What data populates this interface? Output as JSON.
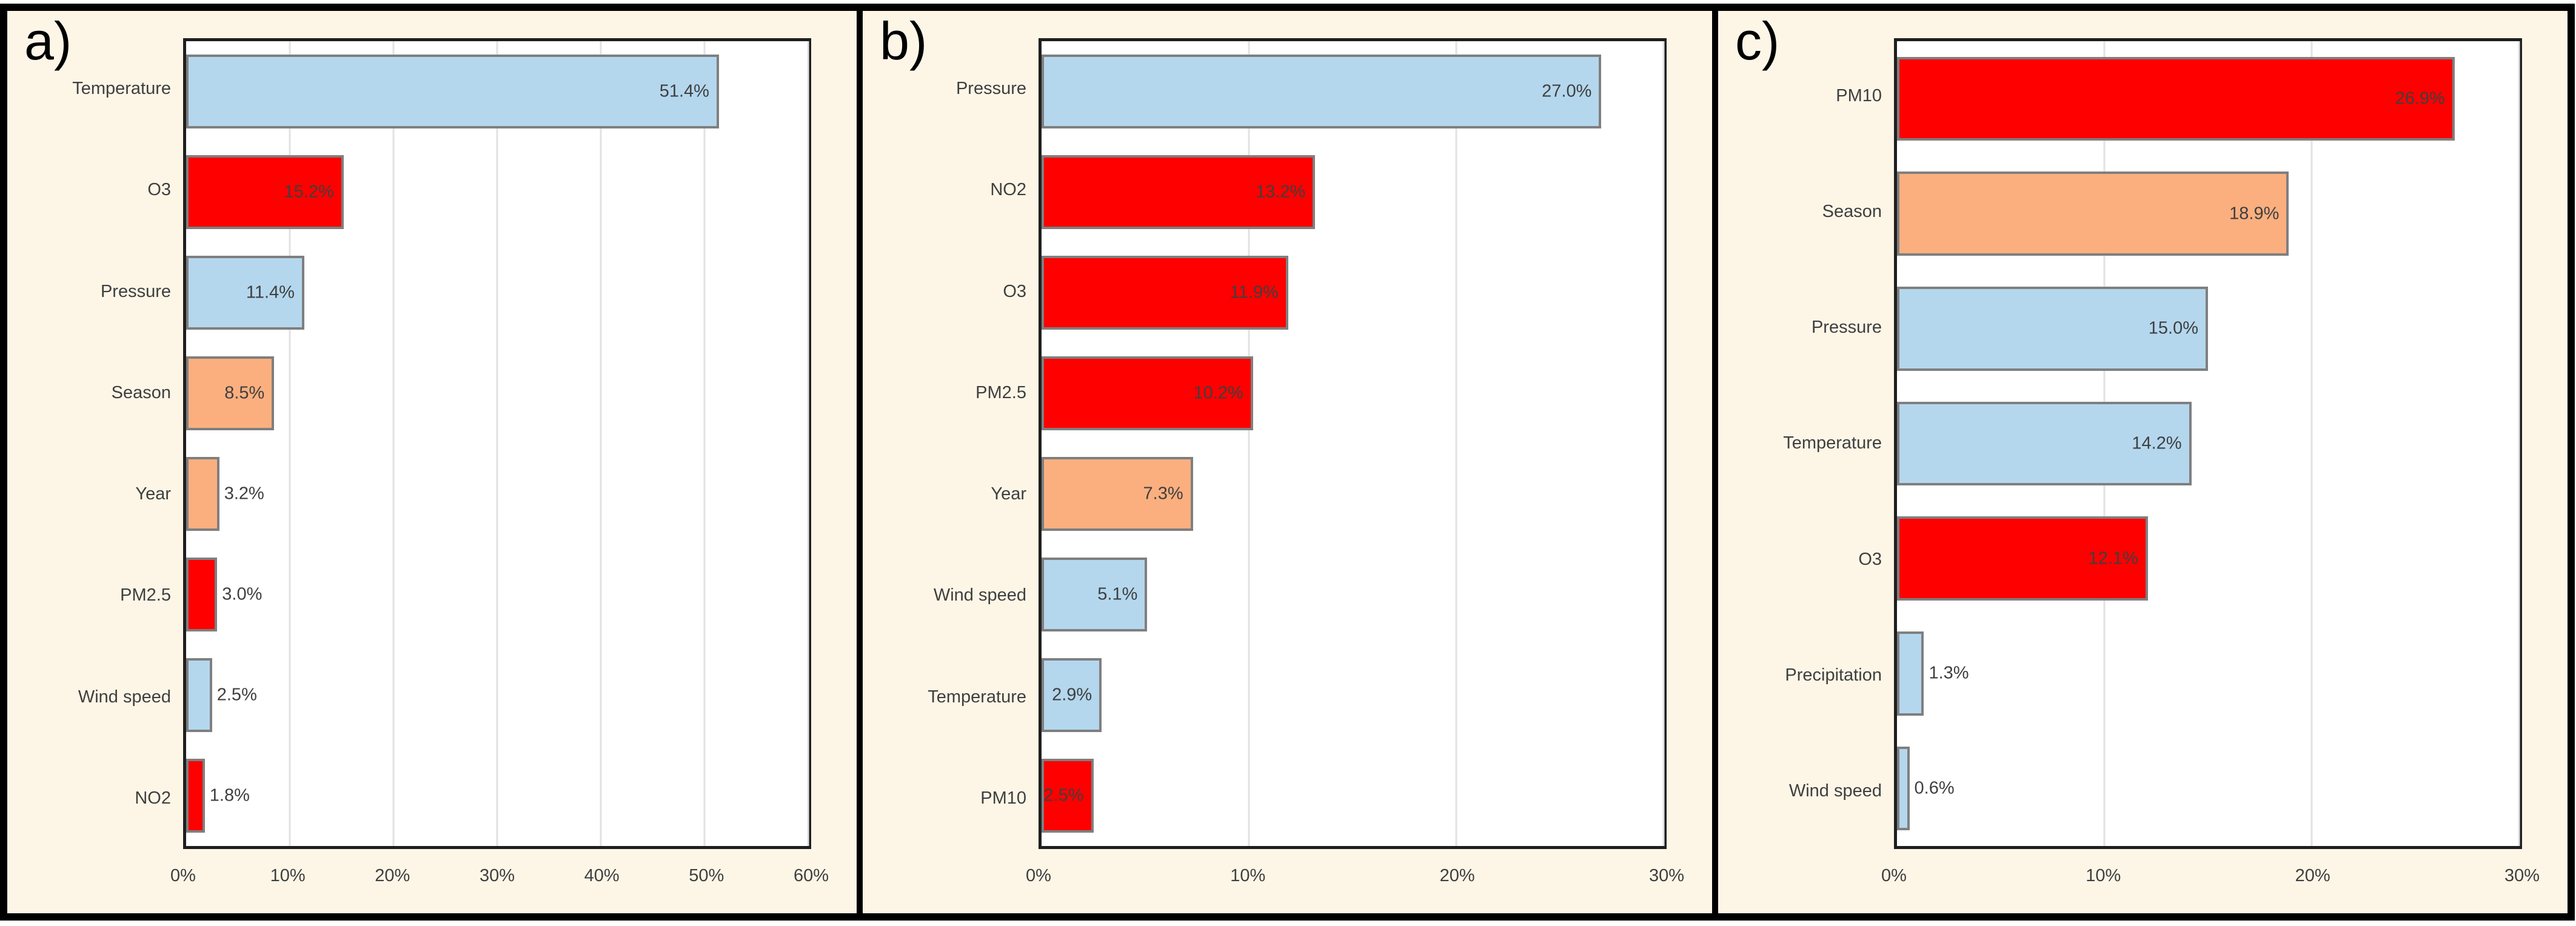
{
  "styles": {
    "background": "#FDF6E7",
    "frame_border": "#000000",
    "plot_border": "#1F1F1F",
    "gridline": "#E2E2E2",
    "text": "#3F3F3F",
    "bar_border": "#7F7F7F",
    "bar_blue": "#B4D7EE",
    "bar_red": "#FE0000",
    "bar_orange": "#FBAF7F"
  },
  "chart_data": [
    {
      "type": "bar",
      "orientation": "horizontal",
      "panel_label": "a)",
      "categories": [
        "Temperature",
        "O3",
        "Pressure",
        "Season",
        "Year",
        "PM2.5",
        "Wind speed",
        "NO2"
      ],
      "values": [
        51.4,
        15.2,
        11.4,
        8.5,
        3.2,
        3.0,
        2.5,
        1.8
      ],
      "value_labels": [
        "51.4%",
        "15.2%",
        "11.4%",
        "8.5%",
        "3.2%",
        "3.0%",
        "2.5%",
        "1.8%"
      ],
      "bar_colors": [
        "blue",
        "red",
        "blue",
        "orange",
        "orange",
        "red",
        "blue",
        "red"
      ],
      "label_placement": [
        "inside",
        "inside",
        "inside",
        "inside",
        "outside",
        "outside",
        "outside",
        "outside"
      ],
      "xlim": [
        0,
        60
      ],
      "xticks": [
        "0%",
        "10%",
        "20%",
        "30%",
        "40%",
        "50%",
        "60%"
      ],
      "grid": true,
      "legend": null,
      "title": "",
      "xlabel": "",
      "ylabel": ""
    },
    {
      "type": "bar",
      "orientation": "horizontal",
      "panel_label": "b)",
      "categories": [
        "Pressure",
        "NO2",
        "O3",
        "PM2.5",
        "Year",
        "Wind speed",
        "Temperature",
        "PM10"
      ],
      "values": [
        27.0,
        13.2,
        11.9,
        10.2,
        7.3,
        5.1,
        2.9,
        2.5
      ],
      "value_labels": [
        "27.0%",
        "13.2%",
        "11.9%",
        "10.2%",
        "7.3%",
        "5.1%",
        "2.9%",
        "2.5%"
      ],
      "bar_colors": [
        "blue",
        "red",
        "red",
        "red",
        "orange",
        "blue",
        "blue",
        "red"
      ],
      "label_placement": [
        "inside",
        "inside",
        "inside",
        "inside",
        "inside",
        "inside",
        "inside",
        "inside"
      ],
      "xlim": [
        0,
        30
      ],
      "xticks": [
        "0%",
        "10%",
        "20%",
        "30%"
      ],
      "grid": true,
      "legend": null,
      "title": "",
      "xlabel": "",
      "ylabel": ""
    },
    {
      "type": "bar",
      "orientation": "horizontal",
      "panel_label": "c)",
      "categories": [
        "PM10",
        "Season",
        "Pressure",
        "Temperature",
        "O3",
        "Precipitation",
        "Wind speed"
      ],
      "values": [
        26.9,
        18.9,
        15.0,
        14.2,
        12.1,
        1.3,
        0.6
      ],
      "value_labels": [
        "26.9%",
        "18.9%",
        "15.0%",
        "14.2%",
        "12.1%",
        "1.3%",
        "0.6%"
      ],
      "bar_colors": [
        "red",
        "orange",
        "blue",
        "blue",
        "red",
        "blue",
        "blue"
      ],
      "label_placement": [
        "inside",
        "inside",
        "inside",
        "inside",
        "inside",
        "outside",
        "outside"
      ],
      "xlim": [
        0,
        30
      ],
      "xticks": [
        "0%",
        "10%",
        "20%",
        "30%"
      ],
      "grid": true,
      "legend": null,
      "title": "",
      "xlabel": "",
      "ylabel": ""
    }
  ]
}
